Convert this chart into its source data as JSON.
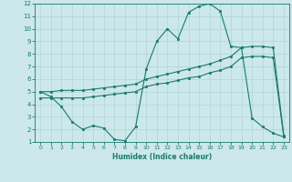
{
  "title": "",
  "xlabel": "Humidex (Indice chaleur)",
  "bg_color": "#cce8ea",
  "line_color": "#1a7a6e",
  "grid_color": "#aed4d6",
  "xlim": [
    -0.5,
    23.5
  ],
  "ylim": [
    1,
    12
  ],
  "yticks": [
    1,
    2,
    3,
    4,
    5,
    6,
    7,
    8,
    9,
    10,
    11,
    12
  ],
  "xticks": [
    0,
    1,
    2,
    3,
    4,
    5,
    6,
    7,
    8,
    9,
    10,
    11,
    12,
    13,
    14,
    15,
    16,
    17,
    18,
    19,
    20,
    21,
    22,
    23
  ],
  "curve1_x": [
    0,
    1,
    2,
    3,
    4,
    5,
    6,
    7,
    8,
    9,
    10,
    11,
    12,
    13,
    14,
    15,
    16,
    17,
    18,
    19,
    20,
    21,
    22,
    23
  ],
  "curve1_y": [
    5.0,
    4.6,
    3.8,
    2.6,
    2.0,
    2.3,
    2.1,
    1.2,
    1.1,
    2.2,
    6.8,
    9.0,
    10.0,
    9.2,
    11.3,
    11.8,
    12.0,
    11.4,
    8.6,
    8.5,
    2.9,
    2.2,
    1.7,
    1.4
  ],
  "curve2_x": [
    0,
    1,
    2,
    3,
    4,
    5,
    6,
    7,
    8,
    9,
    10,
    11,
    12,
    13,
    14,
    15,
    16,
    17,
    18,
    19,
    20,
    21,
    22,
    23
  ],
  "curve2_y": [
    5.0,
    5.0,
    5.1,
    5.1,
    5.1,
    5.2,
    5.3,
    5.4,
    5.5,
    5.6,
    6.0,
    6.2,
    6.4,
    6.6,
    6.8,
    7.0,
    7.2,
    7.5,
    7.8,
    8.5,
    8.6,
    8.6,
    8.5,
    1.5
  ],
  "curve3_x": [
    0,
    1,
    2,
    3,
    4,
    5,
    6,
    7,
    8,
    9,
    10,
    11,
    12,
    13,
    14,
    15,
    16,
    17,
    18,
    19,
    20,
    21,
    22,
    23
  ],
  "curve3_y": [
    4.5,
    4.5,
    4.5,
    4.5,
    4.5,
    4.6,
    4.7,
    4.8,
    4.9,
    5.0,
    5.4,
    5.6,
    5.7,
    5.9,
    6.1,
    6.2,
    6.5,
    6.7,
    7.0,
    7.7,
    7.8,
    7.8,
    7.7,
    1.4
  ]
}
